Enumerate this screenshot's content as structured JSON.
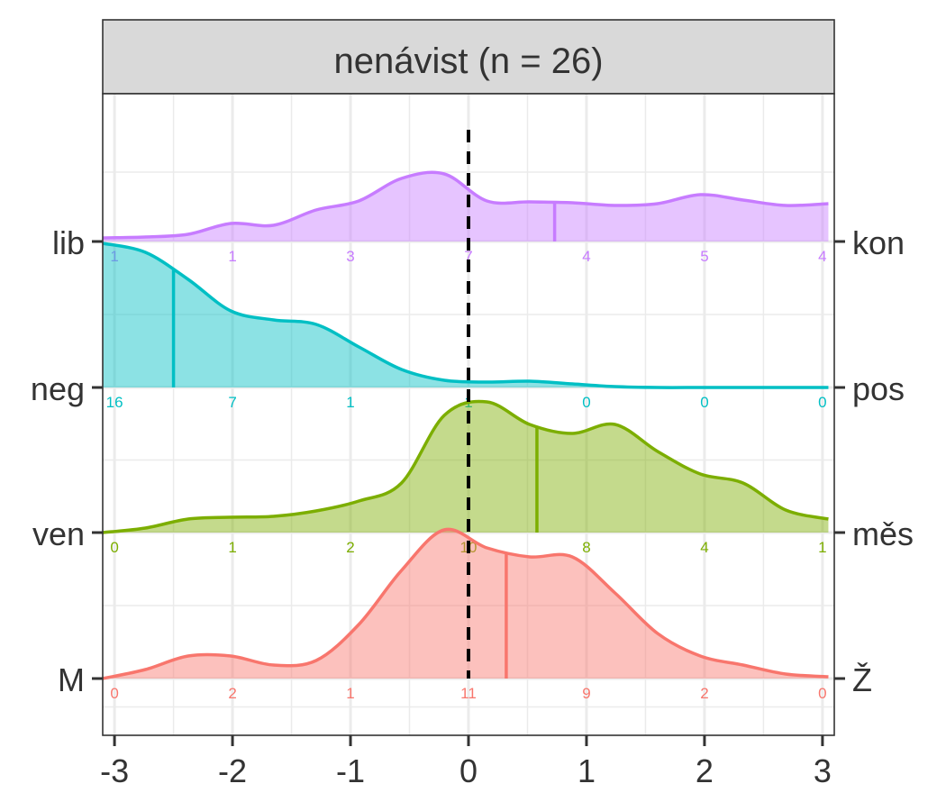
{
  "chart_data": {
    "type": "ridgeline-density",
    "facet_title": "nenávist (n = 26)",
    "x_ticks": [
      "-3",
      "-2",
      "-1",
      "0",
      "1",
      "2",
      "3"
    ],
    "x_range": [
      -3.1,
      3.1
    ],
    "reference_line_x": 0,
    "grid": true,
    "series": [
      {
        "left_label": "lib",
        "right_label": "kon",
        "color": "#C77CFF",
        "counts": [
          1,
          1,
          3,
          7,
          4,
          5,
          4
        ],
        "mean": 0.73,
        "density": [
          0.04,
          0.05,
          0.08,
          0.2,
          0.18,
          0.35,
          0.45,
          0.7,
          0.75,
          0.45,
          0.44,
          0.43,
          0.4,
          0.42,
          0.52,
          0.46,
          0.4,
          0.42
        ]
      },
      {
        "left_label": "neg",
        "right_label": "pos",
        "color": "#00BFC4",
        "counts": [
          16,
          7,
          1,
          1,
          0,
          0,
          0
        ],
        "mean": -2.5,
        "density": [
          1.6,
          1.5,
          1.2,
          0.85,
          0.75,
          0.7,
          0.45,
          0.2,
          0.08,
          0.06,
          0.07,
          0.04,
          0.01,
          0.0,
          0.0,
          0.0,
          0.0,
          0.0
        ]
      },
      {
        "left_label": "ven",
        "right_label": "měs",
        "color": "#7CAE00",
        "counts": [
          0,
          1,
          2,
          10,
          8,
          4,
          1
        ],
        "mean": 0.58,
        "density": [
          0.0,
          0.05,
          0.15,
          0.17,
          0.18,
          0.24,
          0.35,
          0.55,
          1.3,
          1.45,
          1.2,
          1.1,
          1.2,
          0.9,
          0.65,
          0.55,
          0.25,
          0.15
        ]
      },
      {
        "left_label": "M",
        "right_label": "Ž",
        "color": "#F8766D",
        "counts": [
          0,
          2,
          1,
          11,
          9,
          2,
          0
        ],
        "mean": 0.32,
        "density": [
          0.0,
          0.1,
          0.25,
          0.25,
          0.15,
          0.2,
          0.6,
          1.2,
          1.65,
          1.45,
          1.35,
          1.35,
          0.95,
          0.5,
          0.25,
          0.15,
          0.05,
          0.02
        ]
      }
    ]
  }
}
